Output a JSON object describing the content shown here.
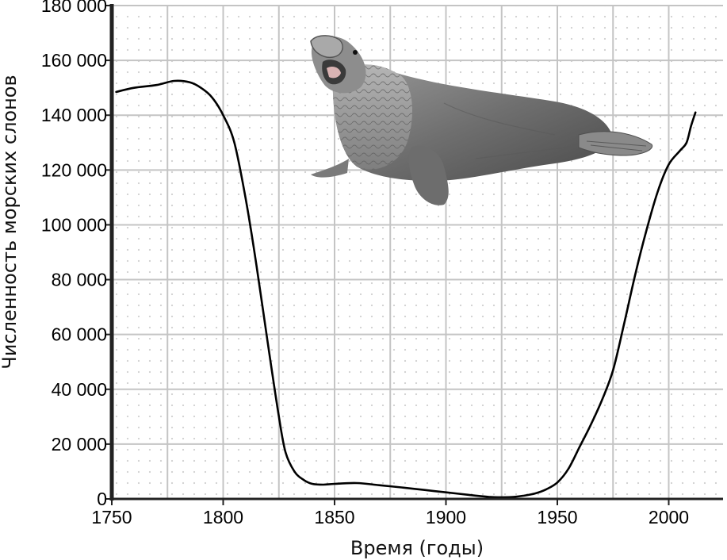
{
  "chart_data": {
    "type": "line",
    "xlabel": "Время (годы)",
    "ylabel": "Численность морских слонов",
    "xlim": [
      1750,
      2025
    ],
    "ylim": [
      0,
      180000
    ],
    "x_ticks": [
      1750,
      1800,
      1850,
      1900,
      1950,
      2000
    ],
    "y_ticks": [
      0,
      20000,
      40000,
      60000,
      80000,
      100000,
      120000,
      140000,
      160000,
      180000
    ],
    "y_tick_labels": [
      "0",
      "20 000",
      "40 000",
      "60 000",
      "80 000",
      "100 000",
      "120 000",
      "140 000",
      "160 000",
      "180 000"
    ],
    "grid": true,
    "series": [
      {
        "color": "#000000",
        "x": [
          1752,
          1760,
          1770,
          1778,
          1785,
          1790,
          1795,
          1800,
          1805,
          1810,
          1815,
          1820,
          1825,
          1828,
          1832,
          1836,
          1840,
          1845,
          1850,
          1860,
          1870,
          1880,
          1890,
          1900,
          1910,
          1920,
          1925,
          1930,
          1935,
          1940,
          1945,
          1950,
          1955,
          1960,
          1965,
          1970,
          1975,
          1980,
          1985,
          1990,
          1995,
          2000,
          2005,
          2008,
          2010,
          2012
        ],
        "values": [
          148500,
          150000,
          151000,
          152500,
          152000,
          150000,
          146500,
          140000,
          130000,
          110000,
          85000,
          57000,
          30000,
          17000,
          10000,
          7000,
          5500,
          5200,
          5500,
          5800,
          5000,
          4200,
          3300,
          2400,
          1500,
          700,
          600,
          700,
          1200,
          2000,
          3500,
          6000,
          11000,
          19000,
          27000,
          36000,
          47000,
          64000,
          82000,
          98000,
          112000,
          122000,
          127000,
          130000,
          136000,
          141000
        ]
      }
    ]
  },
  "illustration": {
    "subject": "elephant-seal"
  }
}
